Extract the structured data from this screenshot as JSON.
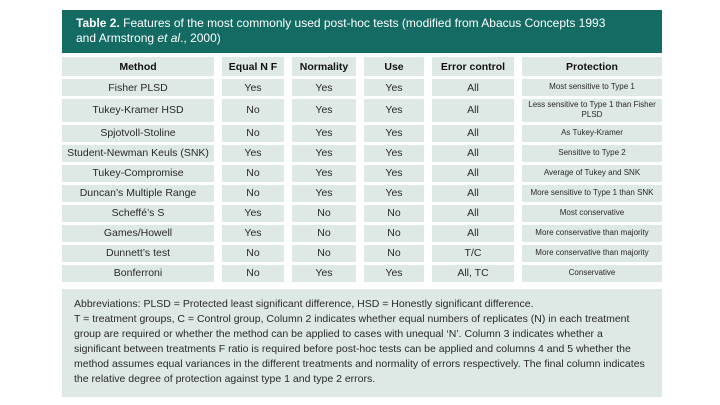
{
  "colors": {
    "banner_teal": "#136b64",
    "banner_text": "#ffffff",
    "cell_bg": "#dee8e5",
    "body_text": "#2a2a2a"
  },
  "title": {
    "label": "Table 2.",
    "line1_rest": " Features of the most commonly used post-hoc tests (modified from Abacus Concepts 1993",
    "line2_pre": "and Armstrong ",
    "line2_italic": "et al",
    "line2_post": "., 2000)"
  },
  "table": {
    "headers": [
      "Method",
      "Equal N F",
      "Normality",
      "Use",
      "Error control",
      "Protection"
    ],
    "rows": [
      {
        "method": "Fisher PLSD",
        "equal_n_f": "Yes",
        "normality": "Yes",
        "use": "Yes",
        "error_control": "All",
        "protection": "Most sensitive to Type 1"
      },
      {
        "method": "Tukey-Kramer HSD",
        "equal_n_f": "No",
        "normality": "Yes",
        "use": "Yes",
        "error_control": "All",
        "protection": "Less sensitive to Type 1 than Fisher PLSD"
      },
      {
        "method": "Spjotvoll-Stoline",
        "equal_n_f": "No",
        "normality": "Yes",
        "use": "Yes",
        "error_control": "All",
        "protection": "As Tukey-Kramer"
      },
      {
        "method": "Student-Newman Keuls (SNK)",
        "equal_n_f": "Yes",
        "normality": "Yes",
        "use": "Yes",
        "error_control": "All",
        "protection": "Sensitive to Type 2"
      },
      {
        "method": "Tukey-Compromise",
        "equal_n_f": "No",
        "normality": "Yes",
        "use": "Yes",
        "error_control": "All",
        "protection": "Average of Tukey and SNK"
      },
      {
        "method": "Duncan’s Multiple Range",
        "equal_n_f": "No",
        "normality": "Yes",
        "use": "Yes",
        "error_control": "All",
        "protection": "More sensitive to Type 1 than SNK"
      },
      {
        "method": "Scheffé’s S",
        "equal_n_f": "Yes",
        "normality": "No",
        "use": "No",
        "error_control": "All",
        "protection": "Most conservative"
      },
      {
        "method": "Games/Howell",
        "equal_n_f": "Yes",
        "normality": "No",
        "use": "No",
        "error_control": "All",
        "protection": "More conservative than majority"
      },
      {
        "method": "Dunnett’s test",
        "equal_n_f": "No",
        "normality": "No",
        "use": "No",
        "error_control": "T/C",
        "protection": "More conservative than majority"
      },
      {
        "method": "Bonferroni",
        "equal_n_f": "No",
        "normality": "Yes",
        "use": "Yes",
        "error_control": "All, TC",
        "protection": "Conservative"
      }
    ]
  },
  "footnote": {
    "line1": "Abbreviations: PLSD = Protected least significant difference, HSD = Honestly significant difference.",
    "body": "T = treatment groups, C = Control group, Column 2 indicates whether equal numbers of replicates (N) in each treatment group are required or whether the method can be applied to cases with unequal ‘N’. Column 3 indicates whether a significant between treatments F ratio is required before post-hoc tests can be applied and columns 4 and 5 whether the method assumes equal variances in the different treatments and normality of errors respectively. The final column indicates the relative degree of protection against type 1 and type 2 errors."
  }
}
